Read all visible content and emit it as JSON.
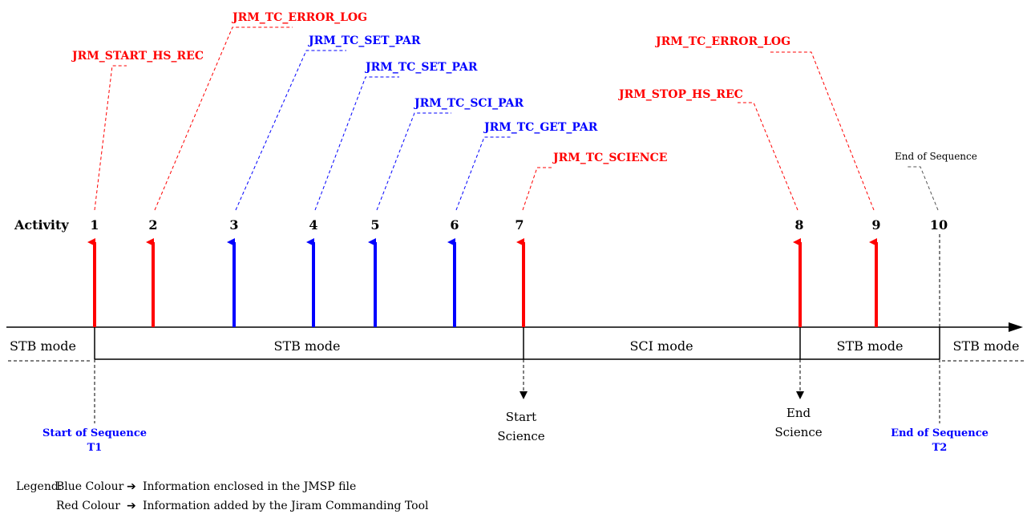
{
  "activity_label": "Activity",
  "colors": {
    "blue": "#0000ff",
    "red": "#ff0000",
    "black": "#000000",
    "grey": "#555555"
  },
  "activities": [
    {
      "number": "1",
      "color": "red",
      "command": "JRM_START_HS_REC"
    },
    {
      "number": "2",
      "color": "red",
      "command": "JRM_TC_ERROR_LOG"
    },
    {
      "number": "3",
      "color": "blue",
      "command": "JRM_TC_SET_PAR"
    },
    {
      "number": "4",
      "color": "blue",
      "command": "JRM_TC_SET_PAR"
    },
    {
      "number": "5",
      "color": "blue",
      "command": "JRM_TC_SCI_PAR"
    },
    {
      "number": "6",
      "color": "blue",
      "command": "JRM_TC_GET_PAR"
    },
    {
      "number": "7",
      "color": "red",
      "command": "JRM_TC_SCIENCE"
    },
    {
      "number": "8",
      "color": "red",
      "command": "JRM_STOP_HS_REC"
    },
    {
      "number": "9",
      "color": "red",
      "command": "JRM_TC_ERROR_LOG"
    },
    {
      "number": "10",
      "color": "none",
      "command": "End of Sequence"
    }
  ],
  "modes": [
    "STB mode",
    "STB mode",
    "SCI mode",
    "STB mode",
    "STB mode"
  ],
  "markers": {
    "start_sequence": {
      "line1": "Start of Sequence",
      "line2": "T1"
    },
    "start_science": {
      "line1": "Start",
      "line2": "Science"
    },
    "end_science": {
      "line1": "End",
      "line2": "Science"
    },
    "end_sequence": {
      "line1": "End of Sequence",
      "line2": "T2"
    }
  },
  "legend": {
    "title": "Legend:",
    "blue_label": "Blue Colour",
    "blue_text": "Information enclosed in the JMSP file",
    "red_label": "Red Colour",
    "red_text": "Information added by the Jiram Commanding Tool",
    "arrow": "➔"
  }
}
